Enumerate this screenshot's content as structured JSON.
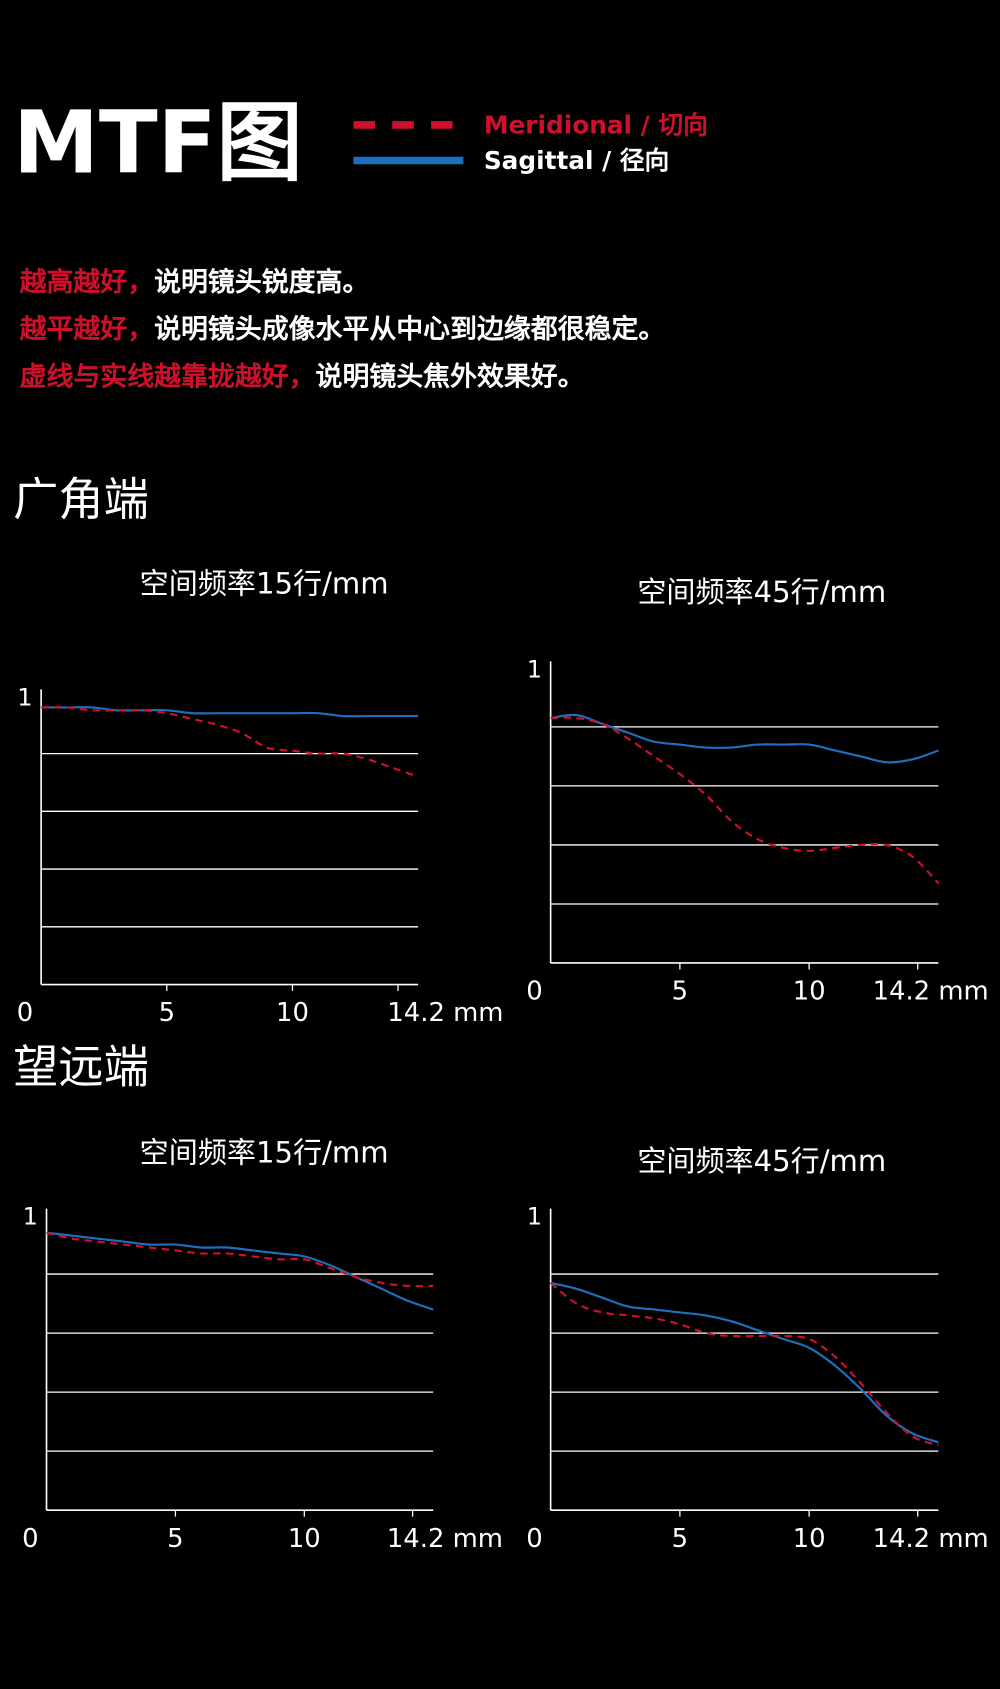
{
  "header": {
    "title": "MTF图"
  },
  "legend": [
    {
      "label": "Meridional / 切向",
      "color": "#d0102a",
      "dashed": true
    },
    {
      "label": "Sagittal / 径向",
      "color": "#1f6fc0",
      "dashed": false
    }
  ],
  "notes": [
    {
      "highlight": "越高越好，",
      "text": "说明镜头锐度高。"
    },
    {
      "highlight": "越平越好，",
      "text": "说明镜头成像水平从中心到边缘都很稳定。"
    },
    {
      "highlight": "虚线与实线越靠拢越好，",
      "text": "说明镜头焦外效果好。"
    }
  ],
  "sections": [
    {
      "title": "广角端"
    },
    {
      "title": "望远端"
    }
  ],
  "chart_data": [
    {
      "type": "line",
      "title": "空间频率15行/mm",
      "x": [
        0,
        1,
        2,
        3,
        4,
        5,
        6,
        7,
        8,
        9,
        10,
        11,
        12,
        13,
        14,
        15
      ],
      "series": [
        {
          "color": "#1f6fc0",
          "dashed": false,
          "values": [
            0.96,
            0.96,
            0.96,
            0.95,
            0.95,
            0.95,
            0.94,
            0.94,
            0.94,
            0.94,
            0.94,
            0.94,
            0.93,
            0.93,
            0.93,
            0.93
          ]
        },
        {
          "color": "#d0102a",
          "dashed": true,
          "values": [
            0.96,
            0.96,
            0.95,
            0.95,
            0.95,
            0.94,
            0.92,
            0.9,
            0.87,
            0.82,
            0.81,
            0.8,
            0.8,
            0.78,
            0.75,
            0.72
          ]
        }
      ],
      "xlim": [
        0,
        15
      ],
      "xticks": [
        0,
        5,
        10,
        {
          "value": 14.2,
          "label": "14.2 mm"
        }
      ],
      "ylim": [
        0,
        1
      ],
      "yticks": [
        1
      ],
      "ygrid": [
        0.2,
        0.4,
        0.6,
        0.8
      ]
    },
    {
      "type": "line",
      "title": "空间频率45行/mm",
      "x": [
        0,
        1,
        2,
        3,
        4,
        5,
        6,
        7,
        8,
        9,
        10,
        11,
        12,
        13,
        14,
        15
      ],
      "series": [
        {
          "color": "#1f6fc0",
          "dashed": false,
          "values": [
            0.83,
            0.84,
            0.81,
            0.78,
            0.75,
            0.74,
            0.73,
            0.73,
            0.74,
            0.74,
            0.74,
            0.72,
            0.7,
            0.68,
            0.69,
            0.72
          ]
        },
        {
          "color": "#d0102a",
          "dashed": true,
          "values": [
            0.83,
            0.83,
            0.81,
            0.76,
            0.7,
            0.64,
            0.57,
            0.48,
            0.42,
            0.39,
            0.38,
            0.39,
            0.4,
            0.4,
            0.36,
            0.27
          ]
        }
      ],
      "xlim": [
        0,
        15
      ],
      "xticks": [
        0,
        5,
        10,
        {
          "value": 14.2,
          "label": "14.2 mm"
        }
      ],
      "ylim": [
        0,
        1
      ],
      "yticks": [
        1
      ],
      "ygrid": [
        0.2,
        0.4,
        0.6,
        0.8
      ]
    },
    {
      "type": "line",
      "title": "空间频率15行/mm",
      "x": [
        0,
        1,
        2,
        3,
        4,
        5,
        6,
        7,
        8,
        9,
        10,
        11,
        12,
        13,
        14,
        15
      ],
      "series": [
        {
          "color": "#1f6fc0",
          "dashed": false,
          "values": [
            0.94,
            0.93,
            0.92,
            0.91,
            0.9,
            0.9,
            0.89,
            0.89,
            0.88,
            0.87,
            0.86,
            0.83,
            0.79,
            0.75,
            0.71,
            0.68
          ]
        },
        {
          "color": "#d0102a",
          "dashed": true,
          "values": [
            0.94,
            0.92,
            0.91,
            0.9,
            0.89,
            0.88,
            0.87,
            0.87,
            0.86,
            0.85,
            0.85,
            0.82,
            0.79,
            0.77,
            0.76,
            0.76
          ]
        }
      ],
      "xlim": [
        0,
        15
      ],
      "xticks": [
        0,
        5,
        10,
        {
          "value": 14.2,
          "label": "14.2 mm"
        }
      ],
      "ylim": [
        0,
        1
      ],
      "yticks": [
        1
      ],
      "ygrid": [
        0.2,
        0.4,
        0.6,
        0.8
      ]
    },
    {
      "type": "line",
      "title": "空间频率45行/mm",
      "x": [
        0,
        1,
        2,
        3,
        4,
        5,
        6,
        7,
        8,
        9,
        10,
        11,
        12,
        13,
        14,
        15
      ],
      "series": [
        {
          "color": "#1f6fc0",
          "dashed": false,
          "values": [
            0.77,
            0.75,
            0.72,
            0.69,
            0.68,
            0.67,
            0.66,
            0.64,
            0.61,
            0.58,
            0.55,
            0.49,
            0.41,
            0.32,
            0.26,
            0.23
          ]
        },
        {
          "color": "#d0102a",
          "dashed": true,
          "values": [
            0.77,
            0.7,
            0.67,
            0.66,
            0.65,
            0.63,
            0.6,
            0.59,
            0.59,
            0.59,
            0.58,
            0.52,
            0.43,
            0.33,
            0.25,
            0.22
          ]
        }
      ],
      "xlim": [
        0,
        15
      ],
      "xticks": [
        0,
        5,
        10,
        {
          "value": 14.2,
          "label": "14.2 mm"
        }
      ],
      "ylim": [
        0,
        1
      ],
      "yticks": [
        1
      ],
      "ygrid": [
        0.2,
        0.4,
        0.6,
        0.8
      ]
    }
  ]
}
